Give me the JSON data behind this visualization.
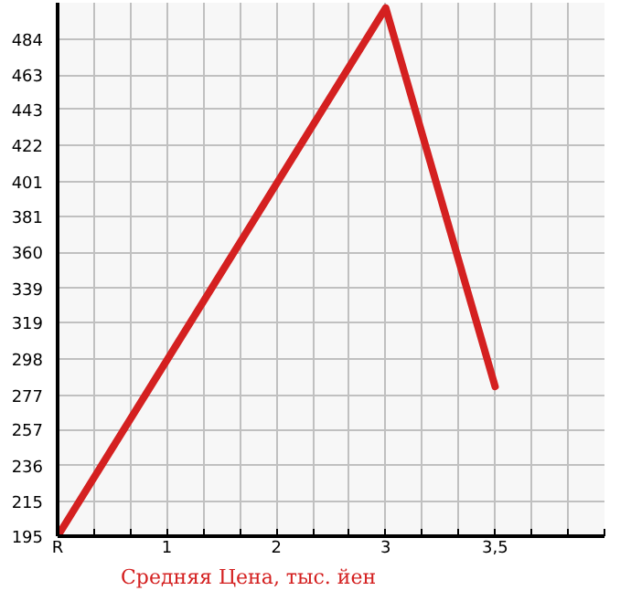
{
  "chart_data": {
    "type": "line",
    "categories": [
      "R",
      "1",
      "2",
      "3",
      "3,5"
    ],
    "series": [
      {
        "name": "Средняя Цена, тыс. йен",
        "color": "#d42020",
        "values": [
          195,
          null,
          null,
          502,
          282
        ]
      }
    ],
    "ylim": [
      195,
      505
    ],
    "yticks": [
      195,
      215,
      236,
      257,
      277,
      298,
      319,
      339,
      360,
      381,
      401,
      422,
      443,
      463,
      484
    ],
    "grid": true,
    "legend": "bottom left",
    "marker": "none",
    "line_style": "solid"
  }
}
